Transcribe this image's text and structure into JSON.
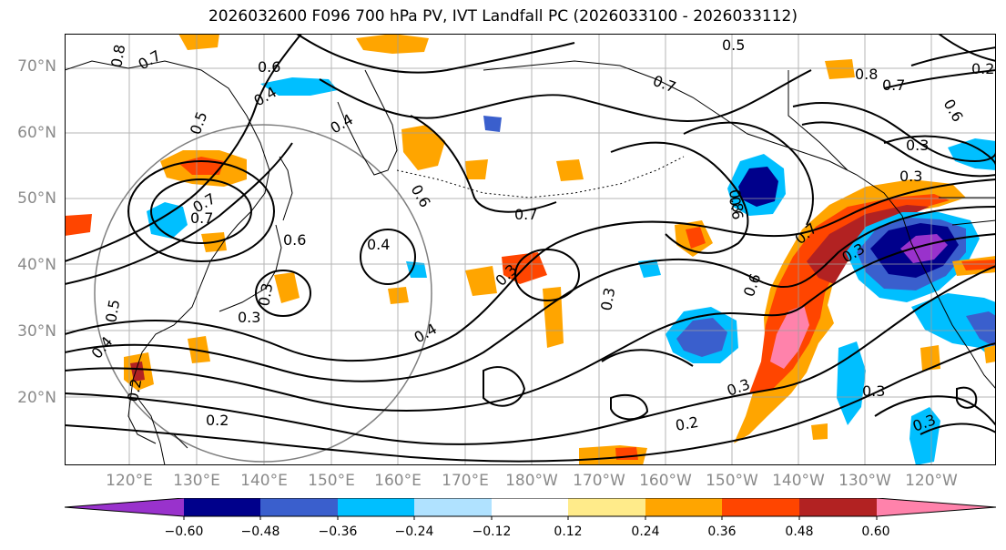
{
  "title": "2026032600 F096 700 hPa PV, IVT Landfall PC (2026033100 - 2026033112)",
  "lat_labels": [
    "70°N",
    "60°N",
    "50°N",
    "40°N",
    "30°N",
    "20°N"
  ],
  "lon_labels": [
    "120°E",
    "130°E",
    "140°E",
    "150°E",
    "160°E",
    "170°E",
    "180°W",
    "170°W",
    "160°W",
    "150°W",
    "140°W",
    "130°W",
    "120°W"
  ],
  "contour_labels": [
    "0.8",
    "0.7",
    "0.6",
    "0.5",
    "0.4",
    "0.3",
    "0.2",
    "0.7",
    "0.6",
    "0.5",
    "0.4",
    "0.3",
    "0.7",
    "0.3",
    "0.3",
    "0.2",
    "0.3",
    "0.3",
    "0.6",
    "0.7",
    "0.8",
    "0.7",
    "0.5",
    "0.6",
    "0.4",
    "0.4",
    "0.3",
    "0.3",
    "0.2",
    "0.8",
    "0.7",
    "0.6",
    "0.7",
    "0.3",
    "0.2",
    "0.4",
    "0.3",
    "0.6"
  ],
  "colorbar": {
    "levels": [
      "−0.60",
      "−0.48",
      "−0.36",
      "−0.24",
      "−0.12",
      "0.12",
      "0.24",
      "0.36",
      "0.48",
      "0.60"
    ],
    "colors": [
      "#9932cc",
      "#00008b",
      "#3a5fcd",
      "#00bfff",
      "#b0e2ff",
      "#ffffff",
      "#ffeb8a",
      "#ffa500",
      "#ff4500",
      "#b22222",
      "#ff82ab"
    ]
  },
  "colors": {
    "negative_strong": "#00008b",
    "negative_mid": "#3a5fcd",
    "negative_light": "#00bfff",
    "positive_light": "#ffa500",
    "positive_mid": "#ff4500",
    "positive_strong": "#b22222",
    "positive_max": "#ff82ab",
    "contour": "#000000",
    "grid": "#9e9e9e",
    "coast": "#000000"
  }
}
